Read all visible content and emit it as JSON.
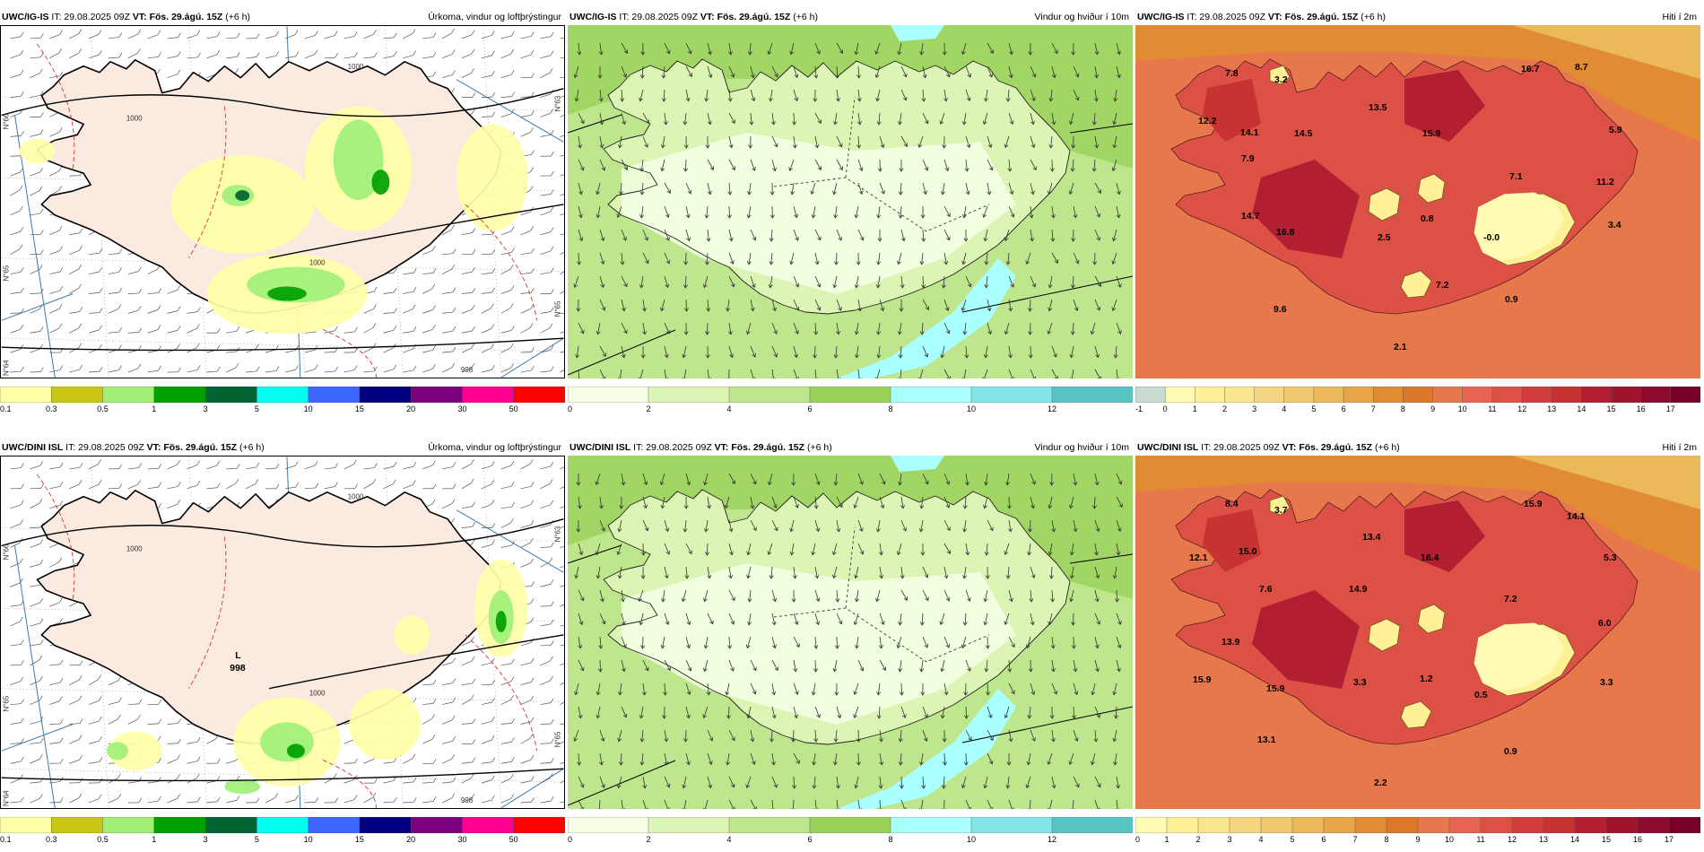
{
  "panels": [
    {
      "id": "p1",
      "model": "UWC/IG-IS",
      "it": "IT: 29.08.2025 09Z",
      "vt": "VT: Fös. 29.ágú. 15Z",
      "lead": "(+6 h)",
      "title": "Úrkoma, vindur og loftþrýstingur",
      "type": "precip",
      "isobars": [
        "1000",
        "1000",
        "1000",
        "998"
      ],
      "edge_labels": [
        "N°66",
        "N°65",
        "N°64",
        "N°63",
        "N°65"
      ],
      "legend_colors": [
        "#ffffa8",
        "#c8c814",
        "#a0f078",
        "#00a000",
        "#006432",
        "#00ffee",
        "#3c64ff",
        "#000080",
        "#7a0080",
        "#ff0090",
        "#ff0000"
      ],
      "legend_labels": [
        "0.1",
        "0.3",
        "0.5",
        "1",
        "3",
        "5",
        "10",
        "15",
        "20",
        "30",
        "50"
      ]
    },
    {
      "id": "p2",
      "model": "UWC/IG-IS",
      "it": "IT: 29.08.2025 09Z",
      "vt": "VT: Fös. 29.ágú. 15Z",
      "lead": "(+6 h)",
      "title": "Vindur og hviður í 10m",
      "type": "wind",
      "legend_colors": [
        "#f5ffe6",
        "#dcf5b4",
        "#bee68c",
        "#9bd25a",
        "#aaffff",
        "#82e6e6",
        "#5ac3c3"
      ],
      "legend_labels": [
        "0",
        "2",
        "4",
        "6",
        "8",
        "10",
        "12"
      ]
    },
    {
      "id": "p3",
      "model": "UWC/IG-IS",
      "it": "IT: 29.08.2025 09Z",
      "vt": "VT: Fös. 29.ágú. 15Z",
      "lead": "(+6 h)",
      "title": "Hiti í 2m",
      "type": "temp",
      "temp_values": [
        "7.8",
        "3.2",
        "16.7",
        "8.7",
        "12.2",
        "14.1",
        "14.5",
        "13.5",
        "15.9",
        "5.9",
        "7.9",
        "7.1",
        "11.2",
        "14.7",
        "16.8",
        "2.5",
        "0.8",
        "-0.0",
        "3.4",
        "7.2",
        "9.6",
        "0.9",
        "2.1"
      ],
      "legend_colors": [
        "#c8dcd2",
        "#fffab4",
        "#fff096",
        "#fae68c",
        "#f5d782",
        "#f0c86e",
        "#ebb95a",
        "#e6a546",
        "#e18c32",
        "#dc7828",
        "#e6784b",
        "#e66450",
        "#dc5046",
        "#d23c3c",
        "#c83232",
        "#b41e32",
        "#a0142d",
        "#8c0a2d",
        "#780028"
      ],
      "legend_labels": [
        "-1",
        "0",
        "1",
        "2",
        "3",
        "4",
        "5",
        "6",
        "7",
        "8",
        "9",
        "10",
        "11",
        "12",
        "13",
        "14",
        "15",
        "16",
        "17"
      ]
    },
    {
      "id": "p4",
      "model": "UWC/DINI ISL",
      "it": "IT: 29.08.2025 09Z",
      "vt": "VT: Fös. 29.ágú. 15Z",
      "lead": "(+6 h)",
      "title": "Úrkoma, vindur og loftþrýstingur",
      "type": "precip",
      "isobars": [
        "1000",
        "1000",
        "1000",
        "998"
      ],
      "low_label": "L",
      "low_value": "998",
      "edge_labels": [
        "N°66",
        "N°65",
        "N°64",
        "N°63",
        "N°65"
      ],
      "legend_colors": [
        "#ffffa8",
        "#c8c814",
        "#a0f078",
        "#00a000",
        "#006432",
        "#00ffee",
        "#3c64ff",
        "#000080",
        "#7a0080",
        "#ff0090",
        "#ff0000"
      ],
      "legend_labels": [
        "0.1",
        "0.3",
        "0.5",
        "1",
        "3",
        "5",
        "10",
        "15",
        "20",
        "30",
        "50"
      ]
    },
    {
      "id": "p5",
      "model": "UWC/DINI ISL",
      "it": "IT: 29.08.2025 09Z",
      "vt": "VT: Fös. 29.ágú. 15Z",
      "lead": "(+6 h)",
      "title": "Vindur og hviður í 10m",
      "type": "wind",
      "legend_colors": [
        "#f5ffe6",
        "#dcf5b4",
        "#bee68c",
        "#9bd25a",
        "#aaffff",
        "#82e6e6",
        "#5ac3c3"
      ],
      "legend_labels": [
        "0",
        "2",
        "4",
        "6",
        "8",
        "10",
        "12"
      ]
    },
    {
      "id": "p6",
      "model": "UWC/DINI ISL",
      "it": "IT: 29.08.2025 09Z",
      "vt": "VT: Fös. 29.ágú. 15Z",
      "lead": "(+6 h)",
      "title": "Hiti í 2m",
      "type": "temp",
      "temp_values": [
        "8.4",
        "3.7",
        "15.9",
        "14.1",
        "12.1",
        "15.0",
        "13.4",
        "16.4",
        "5.3",
        "7.6",
        "14.9",
        "7.2",
        "6.0",
        "13.9",
        "15.9",
        "15.9",
        "3.3",
        "1.2",
        "0.5",
        "3.3",
        "13.1",
        "0.9",
        "2.2"
      ],
      "legend_colors": [
        "#fffab4",
        "#fff096",
        "#fae68c",
        "#f5d782",
        "#f0c86e",
        "#ebb95a",
        "#e6a546",
        "#e18c32",
        "#dc7828",
        "#e6784b",
        "#e66450",
        "#dc5046",
        "#d23c3c",
        "#c83232",
        "#b41e32",
        "#a0142d",
        "#8c0a2d",
        "#780028"
      ],
      "legend_labels": [
        "0",
        "1",
        "2",
        "3",
        "4",
        "5",
        "6",
        "7",
        "8",
        "9",
        "10",
        "11",
        "12",
        "13",
        "14",
        "15",
        "16",
        "17"
      ]
    }
  ]
}
